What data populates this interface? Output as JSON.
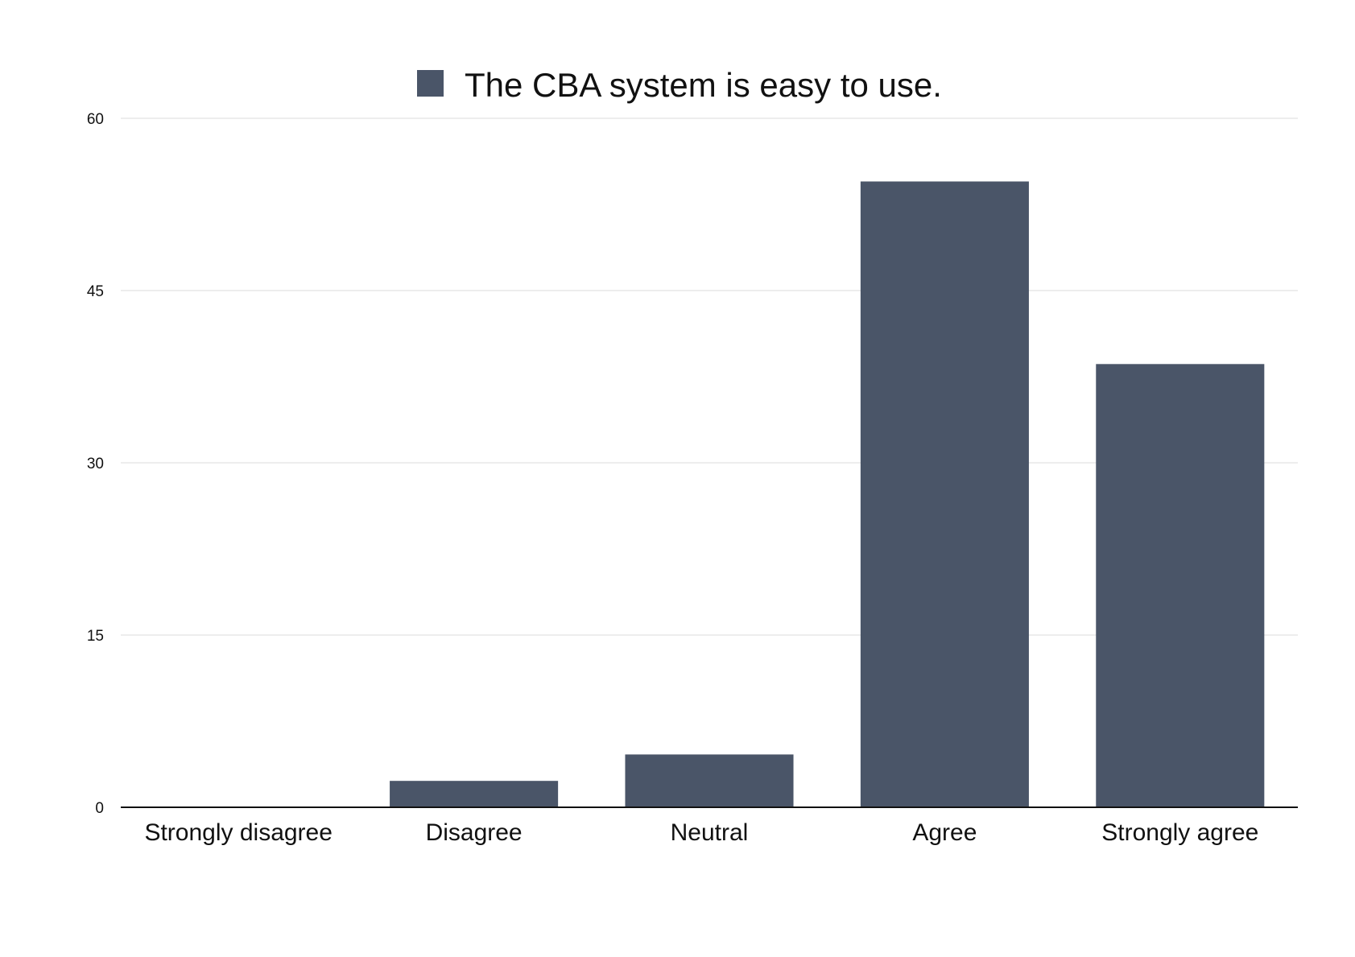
{
  "chart_data": {
    "type": "bar",
    "legend": {
      "position": "top-center",
      "entries": [
        "The CBA system is easy to use."
      ]
    },
    "categories": [
      "Strongly disagree",
      "Disagree",
      "Neutral",
      "Agree",
      "Strongly agree"
    ],
    "series": [
      {
        "name": "The CBA system is easy to use.",
        "values": [
          0,
          2.3,
          4.6,
          54.5,
          38.6
        ]
      }
    ],
    "ylim": [
      0,
      60
    ],
    "yticks": [
      0,
      15,
      30,
      45,
      60
    ],
    "grid": true,
    "colors": {
      "bar": "#4a5568",
      "legend_swatch": "#4a5568"
    }
  }
}
